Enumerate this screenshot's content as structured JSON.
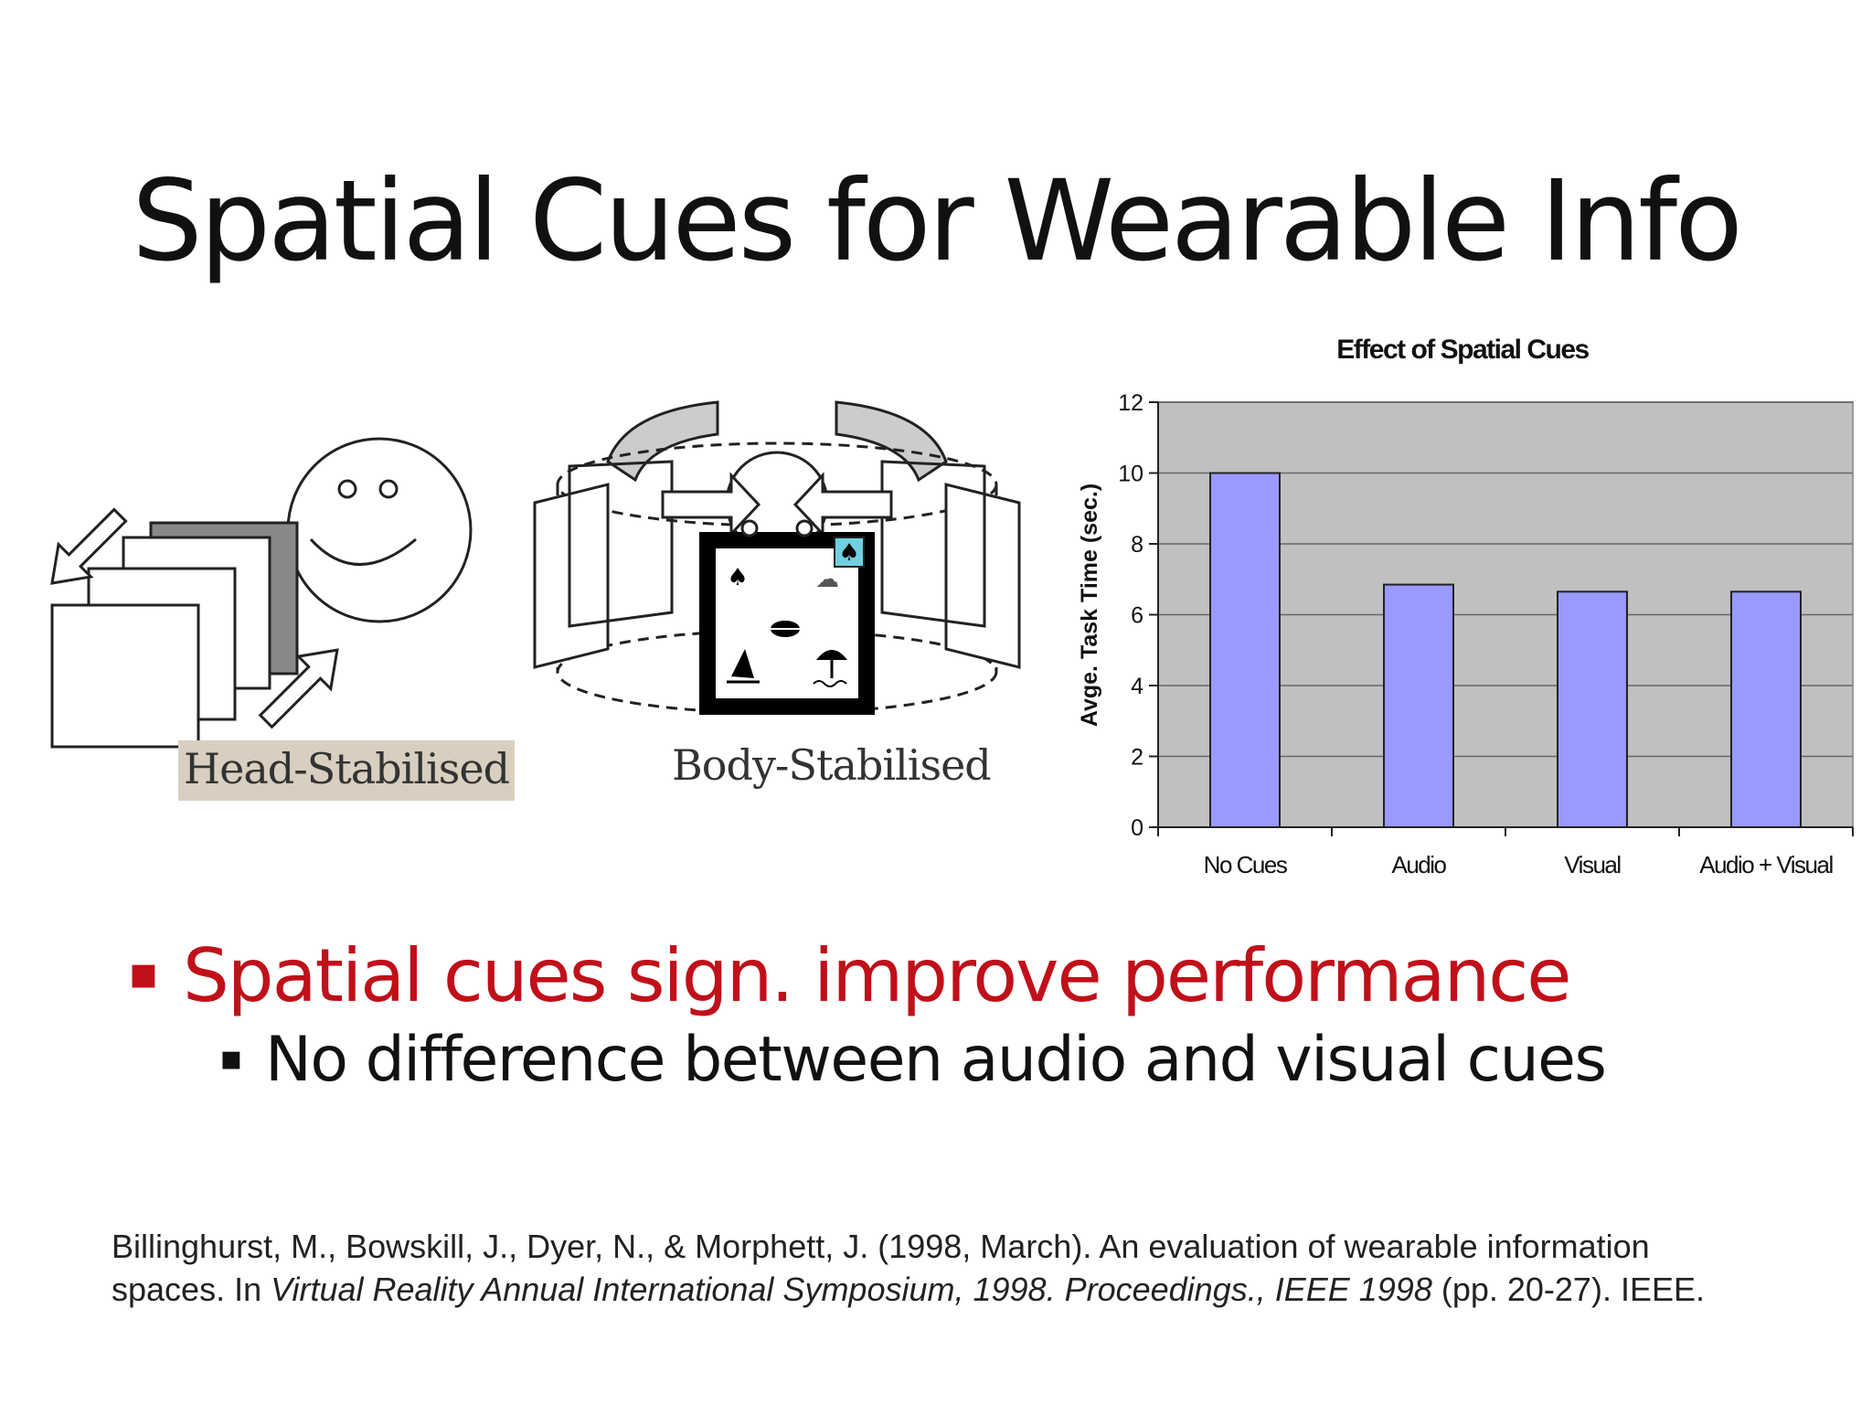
{
  "slide": {
    "title": "Spatial Cues for Wearable Info"
  },
  "figures": {
    "head_stabilised": {
      "label": "Head-Stabilised"
    },
    "body_stabilised": {
      "label": "Body-Stabilised"
    }
  },
  "bullets": [
    {
      "text": "Spatial cues sign. improve performance",
      "color": "#c0101a"
    },
    {
      "text": "No difference between audio and visual cues"
    }
  ],
  "bullet_marker": "▪",
  "citation": {
    "authors": "Billinghurst, M., Bowskill, J., Dyer, N., & Morphett, J. (1998, March). An evaluation of wearable information spaces. In ",
    "venue": "Virtual Reality Annual International Symposium, 1998. Proceedings., IEEE 1998",
    "pages": " (pp. 20-27). IEEE."
  },
  "chart_data": {
    "type": "bar",
    "title": "Effect of Spatial Cues",
    "xlabel": "",
    "ylabel": "Avge. Task Time (sec.)",
    "categories": [
      "No Cues",
      "Audio",
      "Visual",
      "Audio + Visual"
    ],
    "values": [
      10.0,
      6.85,
      6.65,
      6.65
    ],
    "ylim": [
      0,
      12
    ],
    "yticks": [
      0,
      2,
      4,
      6,
      8,
      10,
      12
    ],
    "grid": true,
    "bar_color": "#9999ff",
    "plot_background": "#c0c0c0"
  }
}
